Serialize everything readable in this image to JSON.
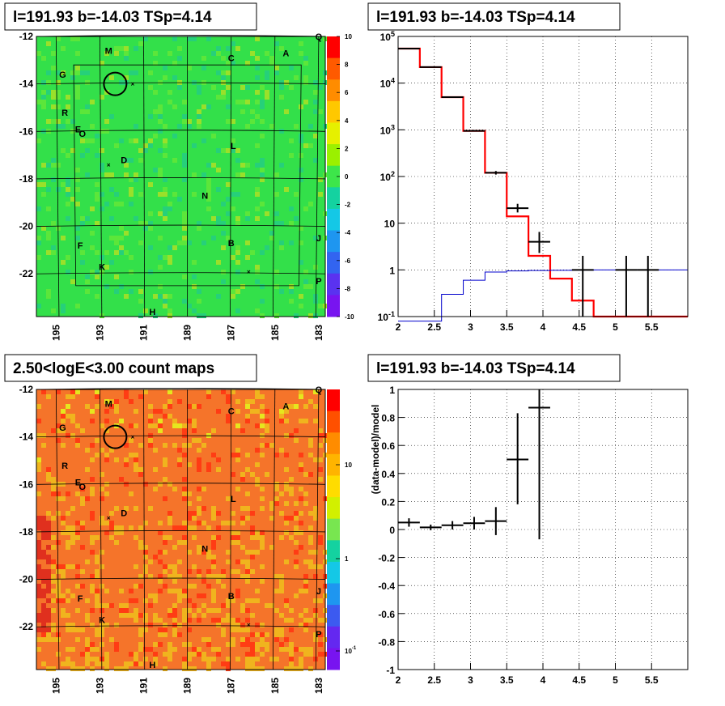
{
  "chart_data": [
    {
      "type": "heatmap",
      "title": "l=191.93 b=-14.03 TSp=4.14",
      "x_ticks": [
        "195",
        "193",
        "191",
        "189",
        "187",
        "185",
        "183"
      ],
      "y_ticks": [
        "-12",
        "-14",
        "-16",
        "-18",
        "-20",
        "-22"
      ],
      "z_ticks": [
        "10",
        "8",
        "6",
        "4",
        "2",
        "0",
        "-2",
        "-4",
        "-6",
        "-8",
        "-10"
      ],
      "zlim": [
        -10,
        10
      ],
      "colormap": "rainbow",
      "background_color": "#33e04a",
      "source_labels": [
        {
          "text": "Q",
          "l": 183.0,
          "b": -12.0
        },
        {
          "text": "M",
          "l": 192.6,
          "b": -12.6
        },
        {
          "text": "C",
          "l": 187.0,
          "b": -12.9
        },
        {
          "text": "A",
          "l": 184.5,
          "b": -12.7
        },
        {
          "text": "G",
          "l": 194.7,
          "b": -13.6
        },
        {
          "text": "R",
          "l": 194.6,
          "b": -15.2
        },
        {
          "text": "E",
          "l": 194.0,
          "b": -15.9
        },
        {
          "text": "O",
          "l": 193.8,
          "b": -16.1
        },
        {
          "text": "L",
          "l": 186.9,
          "b": -16.6
        },
        {
          "text": "D",
          "l": 191.9,
          "b": -17.2
        },
        {
          "text": "N",
          "l": 188.2,
          "b": -18.7
        },
        {
          "text": "J",
          "l": 183.0,
          "b": -20.5
        },
        {
          "text": "B",
          "l": 187.0,
          "b": -20.7
        },
        {
          "text": "F",
          "l": 193.9,
          "b": -20.8
        },
        {
          "text": "K",
          "l": 192.9,
          "b": -21.7
        },
        {
          "text": "P",
          "l": 183.0,
          "b": -22.3
        },
        {
          "text": "H",
          "l": 190.6,
          "b": -23.6
        }
      ],
      "circle": {
        "l": 192.3,
        "b": -14.0
      },
      "crosses": [
        {
          "l": 191.5,
          "b": -14.0
        },
        {
          "l": 192.6,
          "b": -17.4
        },
        {
          "l": 186.2,
          "b": -21.9
        }
      ]
    },
    {
      "type": "line",
      "title": "l=191.93 b=-14.03 TSp=4.14",
      "yscale": "log",
      "xlim": [
        2.0,
        6.0
      ],
      "ylim": [
        0.1,
        100000
      ],
      "x_ticks": [
        "2",
        "2.5",
        "3",
        "3.5",
        "4",
        "4.5",
        "5",
        "5.5"
      ],
      "y_ticks": [
        "10^-1",
        "1",
        "10",
        "10^2",
        "10^3",
        "10^4",
        "10^5"
      ],
      "bin_edges": [
        2.0,
        2.3,
        2.6,
        2.9,
        3.2,
        3.5,
        3.8,
        4.1,
        4.4,
        4.7,
        5.0,
        5.3,
        5.6,
        6.0
      ],
      "series": [
        {
          "color": "#ff0000",
          "values": [
            55000,
            22000,
            5000,
            950,
            120,
            14,
            2,
            0.65,
            0.22,
            0.1,
            0.1,
            0.1,
            0.1
          ]
        },
        {
          "color": "#0000cc",
          "values": [
            0.08,
            0.08,
            0.3,
            0.6,
            0.9,
            0.95,
            0.97,
            0.98,
            0.99,
            1.0,
            1.0,
            1.0,
            1.0
          ]
        }
      ],
      "data_points": [
        {
          "x": 2.15,
          "xerr": 0.15,
          "y": 55000,
          "ylo": 54500,
          "yhi": 55500
        },
        {
          "x": 2.45,
          "xerr": 0.15,
          "y": 22000,
          "ylo": 21800,
          "yhi": 22200
        },
        {
          "x": 2.75,
          "xerr": 0.15,
          "y": 5000,
          "ylo": 4950,
          "yhi": 5050
        },
        {
          "x": 3.05,
          "xerr": 0.15,
          "y": 950,
          "ylo": 920,
          "yhi": 980
        },
        {
          "x": 3.35,
          "xerr": 0.15,
          "y": 120,
          "ylo": 110,
          "yhi": 131
        },
        {
          "x": 3.65,
          "xerr": 0.15,
          "y": 21,
          "ylo": 17,
          "yhi": 26
        },
        {
          "x": 3.95,
          "xerr": 0.15,
          "y": 4,
          "ylo": 2.3,
          "yhi": 6.5
        },
        {
          "x": 4.55,
          "xerr": 0.15,
          "y": 1,
          "ylo": 0.1,
          "yhi": 2.0
        },
        {
          "x": 5.15,
          "xerr": 0.15,
          "y": 1,
          "ylo": 0.1,
          "yhi": 2.0
        },
        {
          "x": 5.45,
          "xerr": 0.15,
          "y": 1,
          "ylo": 0.1,
          "yhi": 2.0
        }
      ]
    },
    {
      "type": "heatmap",
      "title": "2.50<logE<3.00 count maps",
      "x_ticks": [
        "195",
        "193",
        "191",
        "189",
        "187",
        "185",
        "183"
      ],
      "y_ticks": [
        "-12",
        "-14",
        "-16",
        "-18",
        "-20",
        "-22"
      ],
      "z_ticks": [
        "10",
        "1",
        "10^-1"
      ],
      "zscale": "log",
      "colormap": "rainbow",
      "background_color": "#f5742a"
    },
    {
      "type": "scatter",
      "title": "l=191.93 b=-14.03 TSp=4.14",
      "ylabel": "(data-model)/model",
      "xlim": [
        2.0,
        6.0
      ],
      "ylim": [
        -1.0,
        1.0
      ],
      "x_ticks": [
        "2",
        "2.5",
        "3",
        "3.5",
        "4",
        "4.5",
        "5",
        "5.5"
      ],
      "y_ticks": [
        "1",
        "0.8",
        "0.6",
        "0.4",
        "0.2",
        "0",
        "-0.2",
        "-0.4",
        "-0.6",
        "-0.8",
        "-1"
      ],
      "points": [
        {
          "x": 2.15,
          "xerr": 0.15,
          "y": 0.05,
          "ylo": 0.02,
          "yhi": 0.08
        },
        {
          "x": 2.45,
          "xerr": 0.15,
          "y": 0.015,
          "ylo": -0.005,
          "yhi": 0.035
        },
        {
          "x": 2.75,
          "xerr": 0.15,
          "y": 0.03,
          "ylo": 0.0,
          "yhi": 0.06
        },
        {
          "x": 3.05,
          "xerr": 0.15,
          "y": 0.045,
          "ylo": 0.0,
          "yhi": 0.09
        },
        {
          "x": 3.35,
          "xerr": 0.15,
          "y": 0.06,
          "ylo": -0.04,
          "yhi": 0.16
        },
        {
          "x": 3.65,
          "xerr": 0.15,
          "y": 0.5,
          "ylo": 0.18,
          "yhi": 0.83
        },
        {
          "x": 3.95,
          "xerr": 0.15,
          "y": 0.87,
          "ylo": -0.07,
          "yhi": 1.0
        }
      ]
    }
  ]
}
